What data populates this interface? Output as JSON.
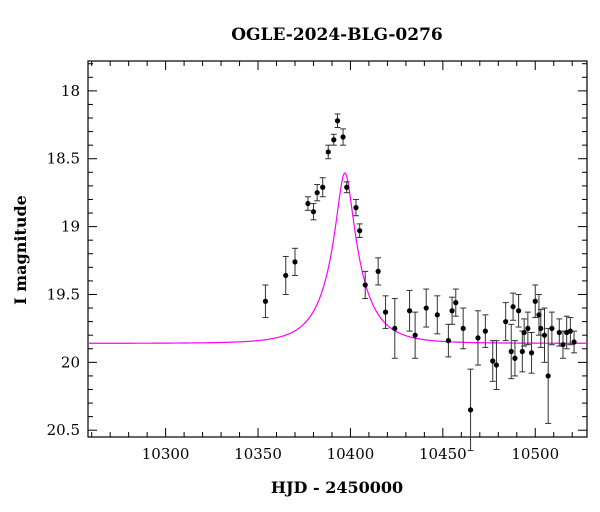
{
  "chart_data": {
    "type": "scatter",
    "title": "OGLE-2024-BLG-0276",
    "xlabel": "HJD - 2450000",
    "ylabel": "I magnitude",
    "xlim": [
      10258,
      10528
    ],
    "ylim": [
      20.55,
      17.78
    ],
    "y_inverted": true,
    "grid": false,
    "legend": "none",
    "xticks": [
      10300,
      10350,
      10400,
      10450,
      10500
    ],
    "xtick_labels": [
      "10300",
      "10350",
      "10400",
      "10450",
      "10500"
    ],
    "yticks": [
      18,
      18.5,
      19,
      19.5,
      20,
      20.5
    ],
    "ytick_labels": [
      "18",
      "18.5",
      "19",
      "19.5",
      "20",
      "20.5"
    ],
    "model_color": "#ff00ff",
    "point_color": "#000000",
    "model": {
      "name": "",
      "t0": 10397,
      "u0": 0.22,
      "tE": 19,
      "baseline_mag": 19.86
    },
    "series": [
      {
        "kind": "points",
        "x": [
          10354,
          10365,
          10370,
          10377,
          10380,
          10382,
          10385,
          10388,
          10391,
          10393,
          10396,
          10398,
          10403,
          10405,
          10408,
          10415,
          10419,
          10424,
          10432,
          10435,
          10441,
          10447,
          10453,
          10455,
          10457,
          10461,
          10465,
          10469,
          10473,
          10477,
          10479,
          10484,
          10487,
          10488,
          10489,
          10491,
          10493,
          10494,
          10496,
          10498,
          10500,
          10502,
          10503,
          10505,
          10507,
          10509,
          10513,
          10515,
          10517,
          10519,
          10521
        ],
        "y": [
          19.55,
          19.36,
          19.26,
          18.83,
          18.89,
          18.75,
          18.71,
          18.45,
          18.36,
          18.22,
          18.34,
          18.71,
          18.86,
          19.03,
          19.43,
          19.33,
          19.63,
          19.75,
          19.62,
          19.8,
          19.6,
          19.65,
          19.84,
          19.62,
          19.56,
          19.75,
          20.35,
          19.82,
          19.77,
          19.99,
          20.02,
          19.7,
          19.92,
          19.59,
          19.97,
          19.62,
          19.92,
          19.78,
          19.75,
          19.93,
          19.55,
          19.65,
          19.75,
          19.8,
          20.1,
          19.75,
          19.78,
          19.87,
          19.78,
          19.77,
          19.85
        ],
        "yerr": [
          0.12,
          0.14,
          0.1,
          0.05,
          0.06,
          0.06,
          0.07,
          0.05,
          0.04,
          0.05,
          0.06,
          0.04,
          0.06,
          0.05,
          0.1,
          0.1,
          0.12,
          0.22,
          0.15,
          0.17,
          0.14,
          0.14,
          0.12,
          0.1,
          0.1,
          0.15,
          0.3,
          0.2,
          0.12,
          0.15,
          0.18,
          0.14,
          0.2,
          0.1,
          0.13,
          0.12,
          0.15,
          0.1,
          0.12,
          0.15,
          0.12,
          0.15,
          0.14,
          0.2,
          0.35,
          0.12,
          0.1,
          0.1,
          0.12,
          0.1,
          0.08
        ]
      }
    ]
  }
}
